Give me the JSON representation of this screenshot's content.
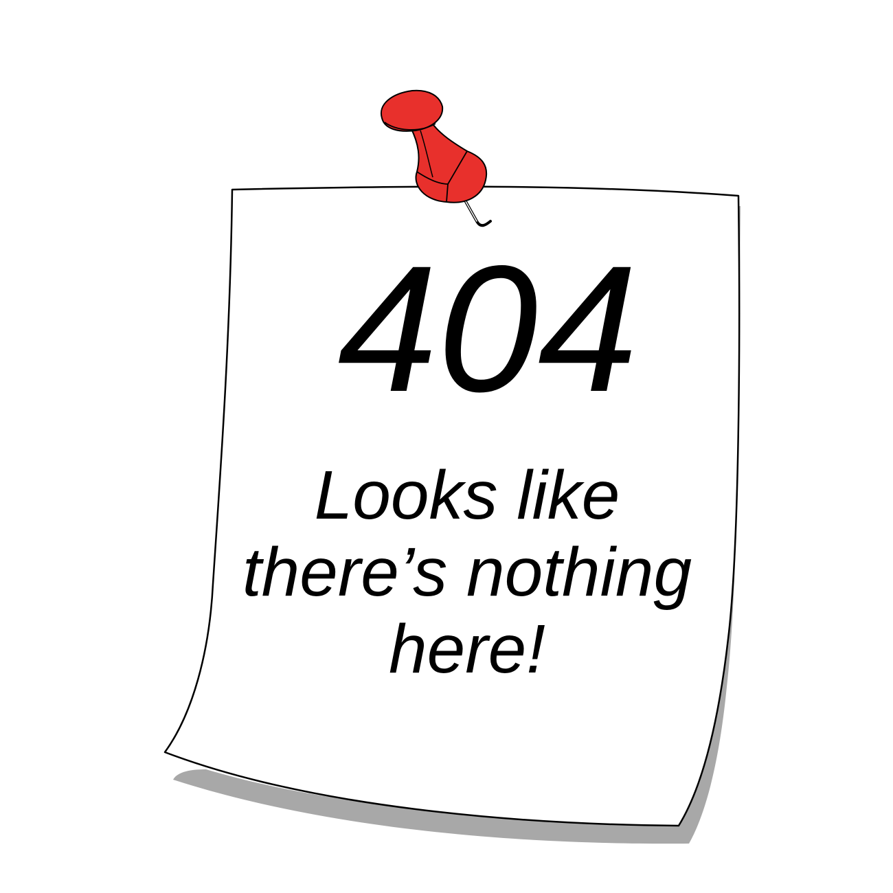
{
  "note": {
    "code": "404",
    "message_lines": [
      "Looks like",
      "there’s nothing",
      "here!"
    ]
  },
  "colors": {
    "pin": "#e8302c",
    "paper": "#ffffff",
    "shadow": "#a8a8a8",
    "text": "#000000"
  },
  "icons": {
    "pin": "pushpin-icon"
  }
}
